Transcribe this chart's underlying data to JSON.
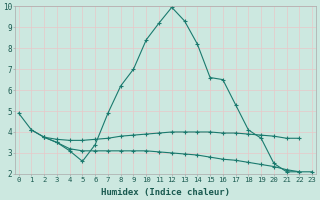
{
  "title": "",
  "xlabel": "Humidex (Indice chaleur)",
  "ylabel": "",
  "bg_color": "#cce8e0",
  "grid_color": "#e8c8c8",
  "line_color": "#1a7a6e",
  "series": [
    {
      "x": [
        0,
        1,
        2,
        3,
        4,
        5,
        6,
        7,
        8,
        9,
        10,
        11,
        12,
        13,
        14,
        15,
        16,
        17,
        18,
        19,
        20,
        21,
        22
      ],
      "y": [
        4.9,
        4.1,
        3.75,
        3.5,
        3.1,
        2.6,
        3.4,
        4.9,
        6.2,
        7.0,
        8.4,
        9.2,
        9.95,
        9.3,
        8.2,
        6.6,
        6.5,
        5.3,
        4.1,
        3.7,
        2.5,
        2.1,
        2.1
      ]
    },
    {
      "x": [
        1,
        2,
        3,
        4,
        5,
        6,
        7,
        8,
        9,
        10,
        11,
        12,
        13,
        14,
        15,
        16,
        17,
        18,
        19,
        20,
        21,
        22
      ],
      "y": [
        4.1,
        3.75,
        3.65,
        3.6,
        3.6,
        3.65,
        3.7,
        3.8,
        3.85,
        3.9,
        3.95,
        4.0,
        4.0,
        4.0,
        4.0,
        3.95,
        3.95,
        3.9,
        3.85,
        3.8,
        3.7,
        3.7
      ]
    },
    {
      "x": [
        2,
        3,
        4,
        5,
        6,
        7,
        8,
        9,
        10,
        11,
        12,
        13,
        14,
        15,
        16,
        17,
        18,
        19,
        20,
        21,
        22,
        23
      ],
      "y": [
        3.75,
        3.5,
        3.2,
        3.1,
        3.1,
        3.1,
        3.1,
        3.1,
        3.1,
        3.05,
        3.0,
        2.95,
        2.9,
        2.8,
        2.7,
        2.65,
        2.55,
        2.45,
        2.35,
        2.2,
        2.1,
        2.1
      ]
    }
  ],
  "xlim": [
    0,
    23
  ],
  "ylim": [
    2,
    10
  ],
  "yticks": [
    2,
    3,
    4,
    5,
    6,
    7,
    8,
    9,
    10
  ],
  "xticks": [
    0,
    1,
    2,
    3,
    4,
    5,
    6,
    7,
    8,
    9,
    10,
    11,
    12,
    13,
    14,
    15,
    16,
    17,
    18,
    19,
    20,
    21,
    22,
    23
  ]
}
